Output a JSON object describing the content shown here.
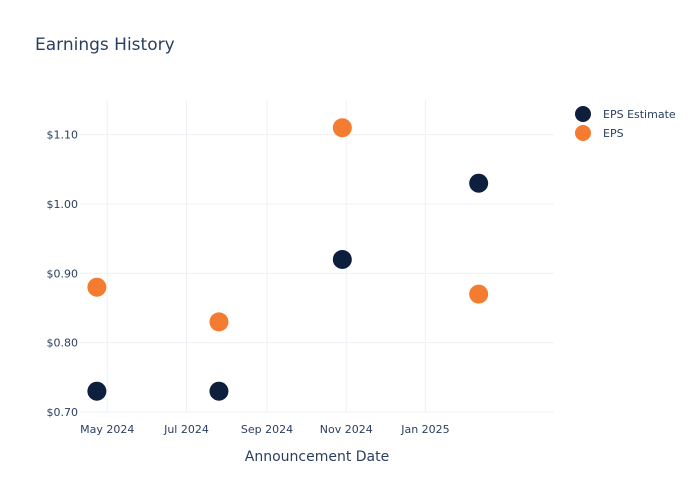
{
  "chart_data": {
    "type": "scatter",
    "title": "Earnings History",
    "xlabel": "Announcement Date",
    "ylabel": "",
    "x_tick_labels": [
      "May 2024",
      "Jul 2024",
      "Sep 2024",
      "Nov 2024",
      "Jan 2025"
    ],
    "x_tick_dates": [
      "2024-05-01",
      "2024-07-01",
      "2024-09-01",
      "2024-11-01",
      "2025-01-01"
    ],
    "xlim": [
      "2024-04-10",
      "2025-04-10"
    ],
    "y_tick_labels": [
      "$0.70",
      "$0.80",
      "$0.90",
      "$1.00",
      "$1.10"
    ],
    "y_tick_values": [
      0.7,
      0.8,
      0.9,
      1.0,
      1.1
    ],
    "ylim": [
      0.7,
      1.15
    ],
    "grid": true,
    "legend_position": "top-right",
    "series": [
      {
        "name": "EPS Estimate",
        "color": "#0d1f3c",
        "points": [
          {
            "x": "2024-04-23",
            "y": 0.73
          },
          {
            "x": "2024-07-26",
            "y": 0.73
          },
          {
            "x": "2024-10-29",
            "y": 0.92
          },
          {
            "x": "2025-02-11",
            "y": 1.03
          }
        ]
      },
      {
        "name": "EPS",
        "color": "#f47c30",
        "points": [
          {
            "x": "2024-04-23",
            "y": 0.88
          },
          {
            "x": "2024-07-26",
            "y": 0.83
          },
          {
            "x": "2024-10-29",
            "y": 1.11
          },
          {
            "x": "2025-02-11",
            "y": 0.87
          }
        ]
      }
    ]
  }
}
